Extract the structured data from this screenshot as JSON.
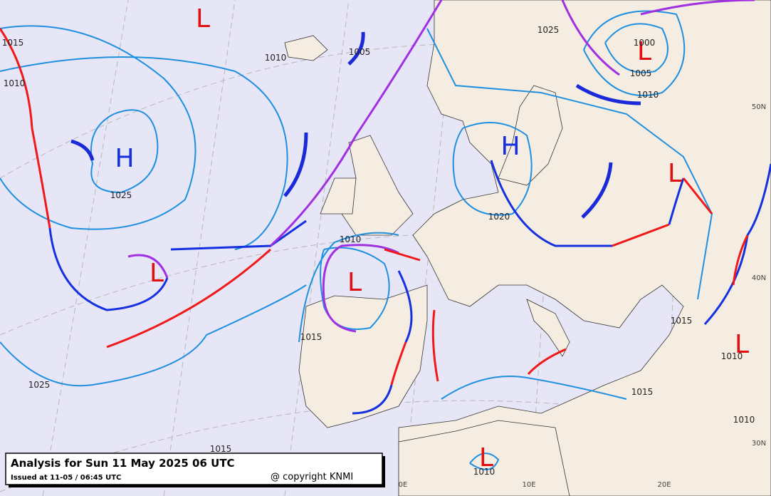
{
  "pressure_centers": [
    "L",
    "H",
    "L",
    "L",
    "H",
    "L",
    "L",
    "L",
    "L"
  ],
  "isobar_labels": [
    "1010",
    "1005",
    "1025",
    "1000",
    "1005",
    "1010",
    "1015",
    "1010",
    "1025",
    "1020",
    "1010",
    "1015",
    "1025",
    "1015",
    "1010",
    "1015",
    "1010",
    "1010",
    "1015"
  ],
  "graticule_labels": [
    "50N",
    "40N",
    "30N",
    "0E",
    "10E",
    "20E"
  ],
  "legend": {
    "title": "Analysis for Sun 11 May 2025 06 UTC",
    "issued": "Issued at 11-05 / 06:45 UTC",
    "copyright": "@ copyright KNMI"
  }
}
